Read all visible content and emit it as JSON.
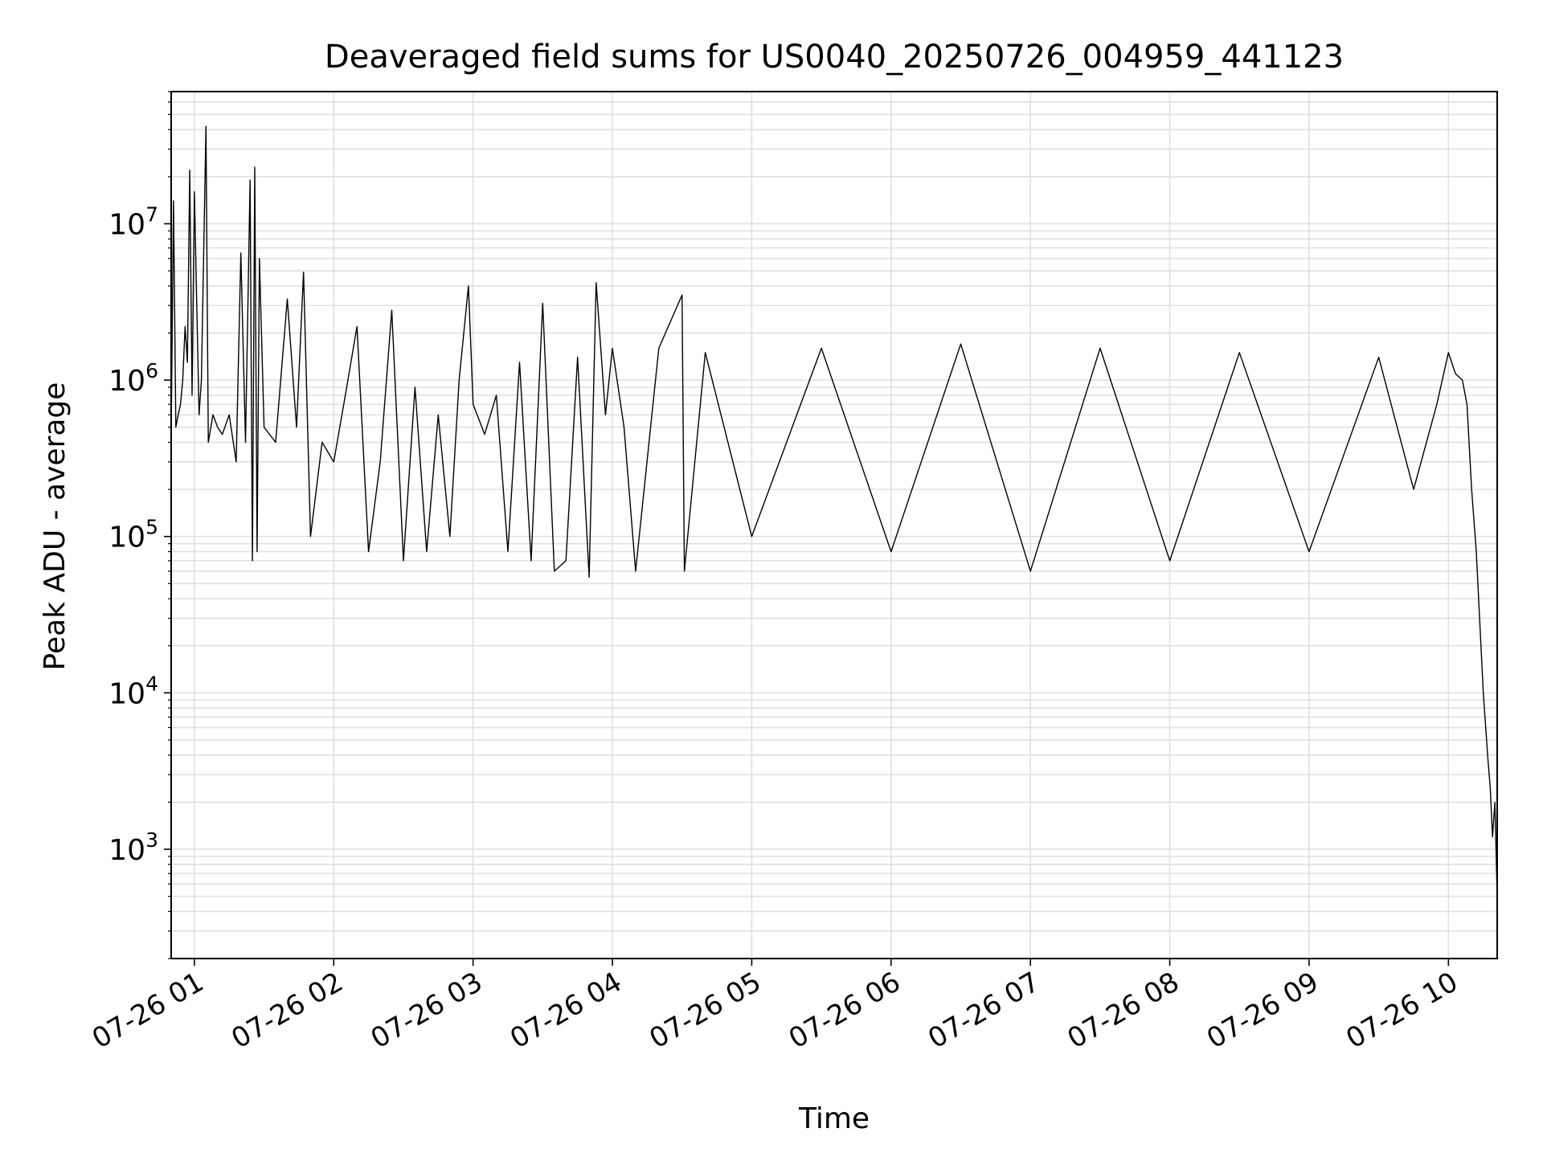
{
  "chart_data": {
    "type": "line",
    "title": "Deaveraged field sums for US0040_20250726_004959_441123",
    "xlabel": "Time",
    "ylabel": "Peak ADU - average",
    "yscale": "log",
    "grid": true,
    "line_color": "#000000",
    "grid_color": "#e0e0e0",
    "xlim": [
      "2025-07-26 00:50",
      "2025-07-26 10:21"
    ],
    "ylim": [
      200,
      70000000
    ],
    "x_ticks": [
      {
        "value": "2025-07-26 01:00",
        "label": "07-26 01"
      },
      {
        "value": "2025-07-26 02:00",
        "label": "07-26 02"
      },
      {
        "value": "2025-07-26 03:00",
        "label": "07-26 03"
      },
      {
        "value": "2025-07-26 04:00",
        "label": "07-26 04"
      },
      {
        "value": "2025-07-26 05:00",
        "label": "07-26 05"
      },
      {
        "value": "2025-07-26 06:00",
        "label": "07-26 06"
      },
      {
        "value": "2025-07-26 07:00",
        "label": "07-26 07"
      },
      {
        "value": "2025-07-26 08:00",
        "label": "07-26 08"
      },
      {
        "value": "2025-07-26 09:00",
        "label": "07-26 09"
      },
      {
        "value": "2025-07-26 10:00",
        "label": "07-26 10"
      }
    ],
    "y_ticks": [
      {
        "value": 1000,
        "base": "10",
        "exp": "3"
      },
      {
        "value": 10000,
        "base": "10",
        "exp": "4"
      },
      {
        "value": 100000,
        "base": "10",
        "exp": "5"
      },
      {
        "value": 1000000,
        "base": "10",
        "exp": "6"
      },
      {
        "value": 10000000,
        "base": "10",
        "exp": "7"
      }
    ],
    "series": [
      {
        "x": [
          "2025-07-26 00:50",
          "2025-07-26 00:51",
          "2025-07-26 00:52",
          "2025-07-26 00:53",
          "2025-07-26 00:54",
          "2025-07-26 00:55",
          "2025-07-26 00:56",
          "2025-07-26 00:57",
          "2025-07-26 00:58",
          "2025-07-26 00:59",
          "2025-07-26 01:00",
          "2025-07-26 01:02",
          "2025-07-26 01:03",
          "2025-07-26 01:05",
          "2025-07-26 01:06",
          "2025-07-26 01:08",
          "2025-07-26 01:10",
          "2025-07-26 01:12",
          "2025-07-26 01:15",
          "2025-07-26 01:18",
          "2025-07-26 01:20",
          "2025-07-26 01:22",
          "2025-07-26 01:24",
          "2025-07-26 01:25",
          "2025-07-26 01:26",
          "2025-07-26 01:27",
          "2025-07-26 01:28",
          "2025-07-26 01:30",
          "2025-07-26 01:35",
          "2025-07-26 01:40",
          "2025-07-26 01:44",
          "2025-07-26 01:47",
          "2025-07-26 01:50",
          "2025-07-26 01:55",
          "2025-07-26 02:00",
          "2025-07-26 02:05",
          "2025-07-26 02:10",
          "2025-07-26 02:15",
          "2025-07-26 02:20",
          "2025-07-26 02:25",
          "2025-07-26 02:30",
          "2025-07-26 02:35",
          "2025-07-26 02:40",
          "2025-07-26 02:45",
          "2025-07-26 02:50",
          "2025-07-26 02:54",
          "2025-07-26 02:58",
          "2025-07-26 03:00",
          "2025-07-26 03:05",
          "2025-07-26 03:10",
          "2025-07-26 03:15",
          "2025-07-26 03:20",
          "2025-07-26 03:25",
          "2025-07-26 03:30",
          "2025-07-26 03:35",
          "2025-07-26 03:40",
          "2025-07-26 03:45",
          "2025-07-26 03:50",
          "2025-07-26 03:53",
          "2025-07-26 03:57",
          "2025-07-26 04:00",
          "2025-07-26 04:05",
          "2025-07-26 04:10",
          "2025-07-26 04:20",
          "2025-07-26 04:30",
          "2025-07-26 04:31",
          "2025-07-26 04:40",
          "2025-07-26 05:00",
          "2025-07-26 05:30",
          "2025-07-26 06:00",
          "2025-07-26 06:30",
          "2025-07-26 07:00",
          "2025-07-26 07:30",
          "2025-07-26 08:00",
          "2025-07-26 08:30",
          "2025-07-26 09:00",
          "2025-07-26 09:30",
          "2025-07-26 09:45",
          "2025-07-26 09:55",
          "2025-07-26 10:00",
          "2025-07-26 10:03",
          "2025-07-26 10:06",
          "2025-07-26 10:08",
          "2025-07-26 10:10",
          "2025-07-26 10:12",
          "2025-07-26 10:13",
          "2025-07-26 10:15",
          "2025-07-26 10:17",
          "2025-07-26 10:18",
          "2025-07-26 10:19",
          "2025-07-26 10:20",
          "2025-07-26 10:21"
        ],
        "y": [
          450000,
          14000000,
          500000,
          600000,
          700000,
          1000000,
          2200000,
          1300000,
          22000000,
          800000,
          16000000,
          600000,
          1000000,
          42000000,
          400000,
          600000,
          500000,
          450000,
          600000,
          300000,
          6500000,
          400000,
          19000000,
          70000,
          23000000,
          80000,
          6000000,
          500000,
          400000,
          3300000,
          500000,
          4900000,
          100000,
          400000,
          300000,
          800000,
          2200000,
          80000,
          300000,
          2800000,
          70000,
          900000,
          80000,
          600000,
          100000,
          1000000,
          4000000,
          700000,
          450000,
          800000,
          80000,
          1300000,
          70000,
          3100000,
          60000,
          70000,
          1400000,
          55000,
          4200000,
          600000,
          1600000,
          500000,
          60000,
          1600000,
          3500000,
          60000,
          1500000,
          100000,
          1600000,
          80000,
          1700000,
          60000,
          1600000,
          70000,
          1500000,
          80000,
          1400000,
          200000,
          700000,
          1500000,
          1100000,
          1000000,
          700000,
          200000,
          80000,
          40000,
          10000,
          3800,
          2500,
          1200,
          2000,
          500
        ]
      }
    ]
  }
}
